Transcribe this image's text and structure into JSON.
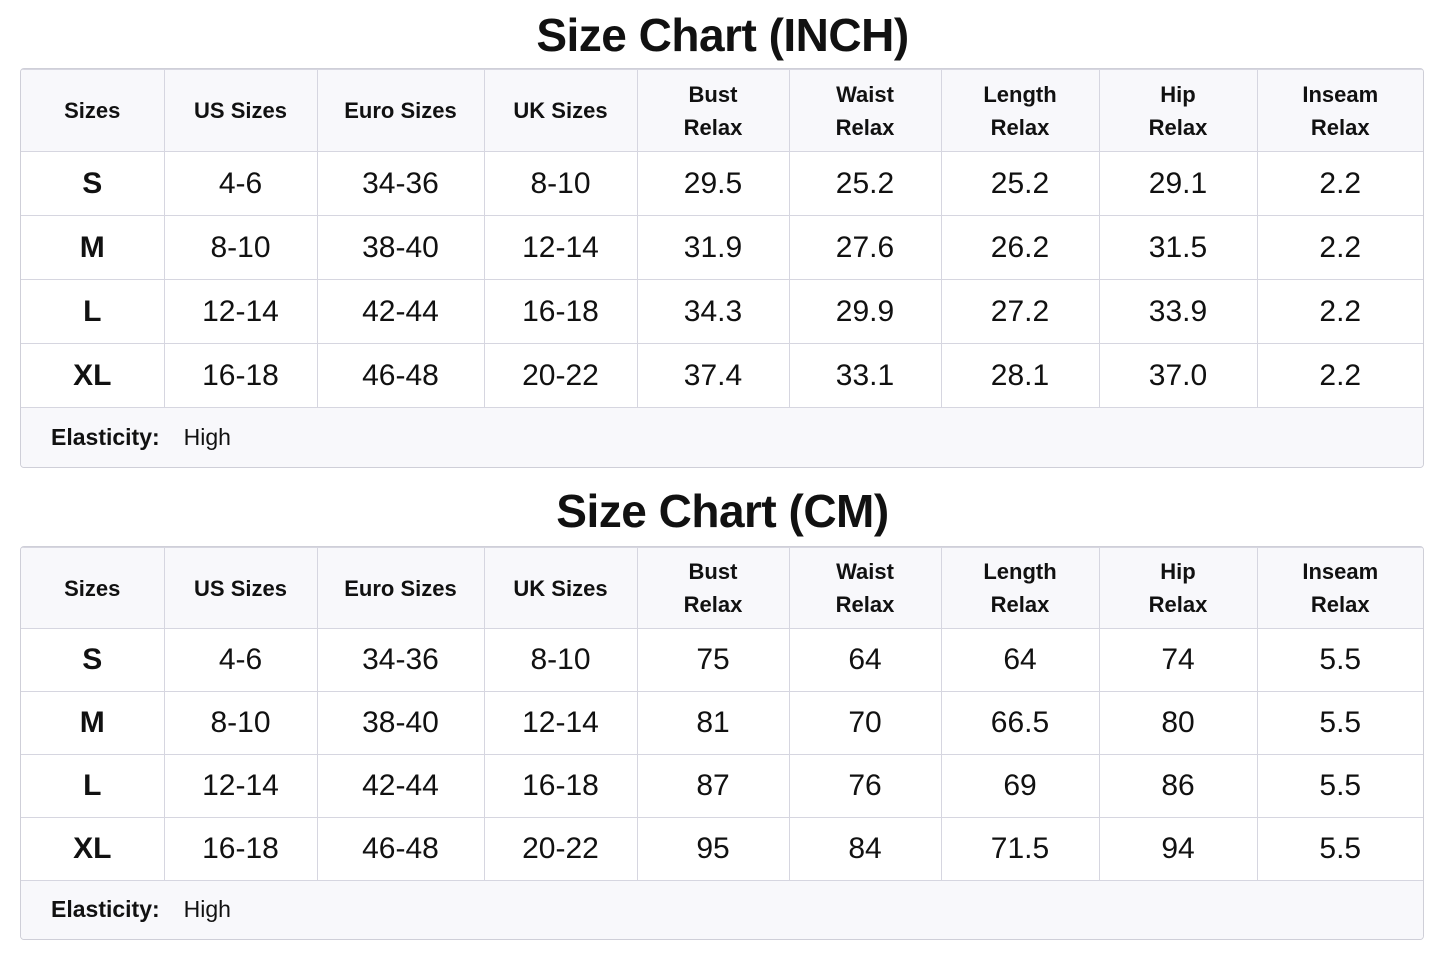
{
  "tables": [
    {
      "title": "Size Chart (INCH)",
      "headers": [
        [
          "Sizes"
        ],
        [
          "US Sizes"
        ],
        [
          "Euro Sizes"
        ],
        [
          "UK Sizes"
        ],
        [
          "Bust",
          "Relax"
        ],
        [
          "Waist",
          "Relax"
        ],
        [
          "Length",
          "Relax"
        ],
        [
          "Hip",
          "Relax"
        ],
        [
          "Inseam",
          "Relax"
        ]
      ],
      "rows": [
        [
          "S",
          "4-6",
          "34-36",
          "8-10",
          "29.5",
          "25.2",
          "25.2",
          "29.1",
          "2.2"
        ],
        [
          "M",
          "8-10",
          "38-40",
          "12-14",
          "31.9",
          "27.6",
          "26.2",
          "31.5",
          "2.2"
        ],
        [
          "L",
          "12-14",
          "42-44",
          "16-18",
          "34.3",
          "29.9",
          "27.2",
          "33.9",
          "2.2"
        ],
        [
          "XL",
          "16-18",
          "46-48",
          "20-22",
          "37.4",
          "33.1",
          "28.1",
          "37.0",
          "2.2"
        ]
      ],
      "footer": {
        "label": "Elasticity:",
        "value": "High"
      }
    },
    {
      "title": "Size Chart (CM)",
      "headers": [
        [
          "Sizes"
        ],
        [
          "US Sizes"
        ],
        [
          "Euro Sizes"
        ],
        [
          "UK Sizes"
        ],
        [
          "Bust",
          "Relax"
        ],
        [
          "Waist",
          "Relax"
        ],
        [
          "Length",
          "Relax"
        ],
        [
          "Hip",
          "Relax"
        ],
        [
          "Inseam",
          "Relax"
        ]
      ],
      "rows": [
        [
          "S",
          "4-6",
          "34-36",
          "8-10",
          "75",
          "64",
          "64",
          "74",
          "5.5"
        ],
        [
          "M",
          "8-10",
          "38-40",
          "12-14",
          "81",
          "70",
          "66.5",
          "80",
          "5.5"
        ],
        [
          "L",
          "12-14",
          "42-44",
          "16-18",
          "87",
          "76",
          "69",
          "86",
          "5.5"
        ],
        [
          "XL",
          "16-18",
          "46-48",
          "20-22",
          "95",
          "84",
          "71.5",
          "94",
          "5.5"
        ]
      ],
      "footer": {
        "label": "Elasticity:",
        "value": "High"
      }
    }
  ]
}
